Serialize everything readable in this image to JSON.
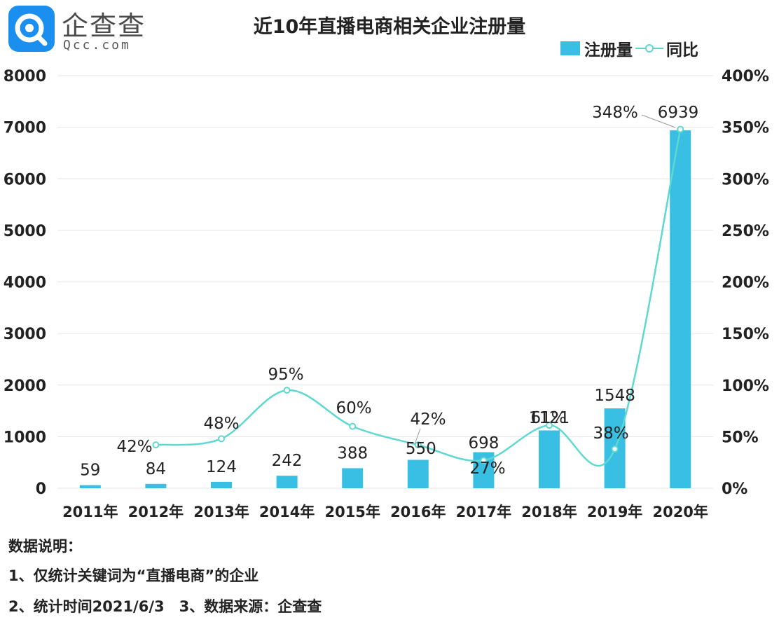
{
  "brand": {
    "logo_cn": "企查查",
    "logo_en": "Qcc.com"
  },
  "title": "近10年直播电商相关企业注册量",
  "legend": {
    "bar": "注册量",
    "line": "同比"
  },
  "colors": {
    "bar": "#38bfe3",
    "line": "#5fd8d0",
    "grid": "#e4e4e4"
  },
  "chart_data": {
    "type": "bar",
    "categories": [
      "2011年",
      "2012年",
      "2013年",
      "2014年",
      "2015年",
      "2016年",
      "2017年",
      "2018年",
      "2019年",
      "2020年"
    ],
    "series": [
      {
        "name": "注册量",
        "type": "bar",
        "axis": "left",
        "values": [
          59,
          84,
          124,
          242,
          388,
          550,
          698,
          1121,
          1548,
          6939
        ]
      },
      {
        "name": "同比",
        "type": "line",
        "axis": "right",
        "values": [
          null,
          42,
          48,
          95,
          60,
          42,
          27,
          61,
          38,
          348
        ],
        "unit": "%"
      }
    ],
    "left_axis": {
      "min": 0,
      "max": 8000,
      "ticks": [
        "0",
        "1000",
        "2000",
        "3000",
        "4000",
        "5000",
        "6000",
        "7000",
        "8000"
      ]
    },
    "right_axis": {
      "min": 0,
      "max": 400,
      "ticks": [
        "0%",
        "50%",
        "100%",
        "150%",
        "200%",
        "250%",
        "300%",
        "350%",
        "400%"
      ]
    },
    "bar_labels": [
      "59",
      "84",
      "124",
      "242",
      "388",
      "550",
      "698",
      "1121",
      "1548",
      "6939"
    ],
    "line_labels": [
      "",
      "42%",
      "48%",
      "95%",
      "60%",
      "42%",
      "27%",
      "61%",
      "38%",
      "348%"
    ],
    "grid": true,
    "legend_position": "top-right"
  },
  "notes": {
    "heading": "数据说明：",
    "line1": "1、仅统计关键词为“直播电商”的企业",
    "line2": "2、统计时间2021/6/3　3、数据来源：企查查"
  }
}
